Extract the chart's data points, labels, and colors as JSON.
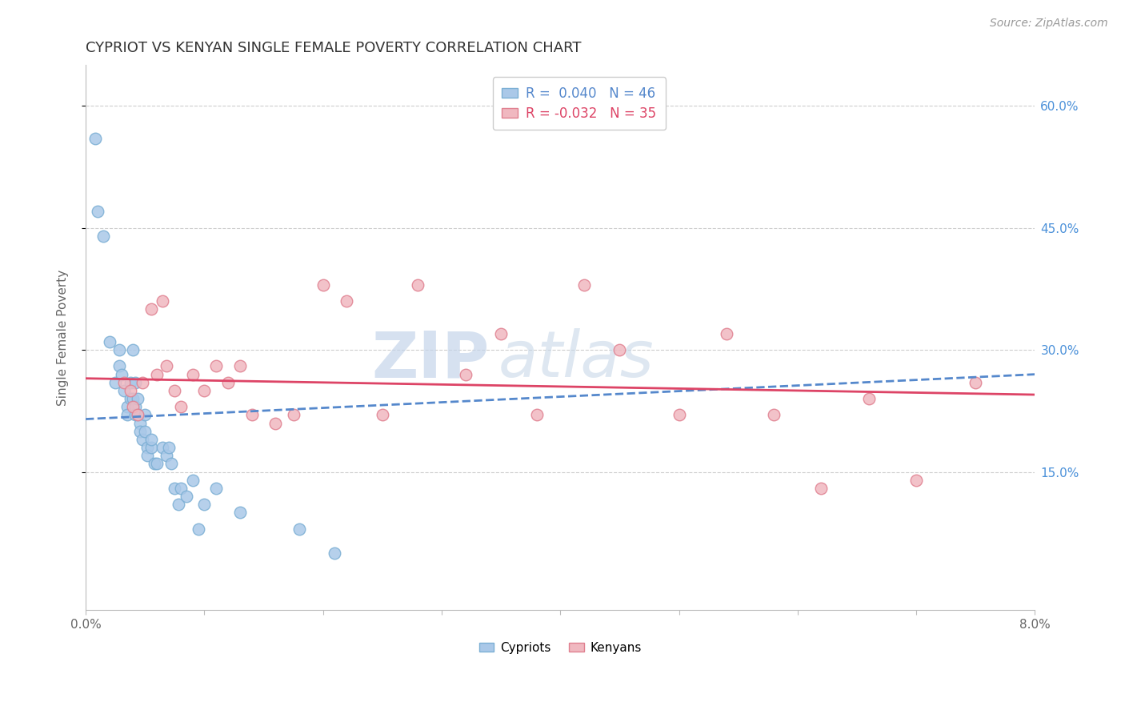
{
  "title": "CYPRIOT VS KENYAN SINGLE FEMALE POVERTY CORRELATION CHART",
  "source_text": "Source: ZipAtlas.com",
  "ylabel": "Single Female Poverty",
  "xlim": [
    0.0,
    0.08
  ],
  "ylim": [
    -0.02,
    0.65
  ],
  "y_tick_right": [
    0.15,
    0.3,
    0.45,
    0.6
  ],
  "y_tick_right_labels": [
    "15.0%",
    "30.0%",
    "45.0%",
    "60.0%"
  ],
  "cypriot_color_edge": "#7bafd4",
  "cypriot_color_fill": "#aac8e8",
  "kenyan_color_edge": "#e08090",
  "kenyan_color_fill": "#f0b8c0",
  "trend_cypriot_color": "#5588cc",
  "trend_kenyan_color": "#dd4466",
  "R_cypriot": 0.04,
  "N_cypriot": 46,
  "R_kenyan": -0.032,
  "N_kenyan": 35,
  "background_color": "#ffffff",
  "grid_color": "#c8c8c8",
  "watermark_color": "#ccd8ee",
  "cypriot_x": [
    0.0008,
    0.001,
    0.0015,
    0.002,
    0.0025,
    0.0028,
    0.0028,
    0.003,
    0.0032,
    0.0035,
    0.0035,
    0.0038,
    0.0038,
    0.004,
    0.004,
    0.0042,
    0.0042,
    0.0042,
    0.0044,
    0.0044,
    0.0046,
    0.0046,
    0.0048,
    0.005,
    0.005,
    0.0052,
    0.0052,
    0.0055,
    0.0055,
    0.0058,
    0.006,
    0.0065,
    0.0068,
    0.007,
    0.0072,
    0.0075,
    0.0078,
    0.008,
    0.0085,
    0.009,
    0.0095,
    0.01,
    0.011,
    0.013,
    0.018,
    0.021
  ],
  "cypriot_y": [
    0.56,
    0.47,
    0.44,
    0.31,
    0.26,
    0.28,
    0.3,
    0.27,
    0.25,
    0.23,
    0.22,
    0.26,
    0.24,
    0.3,
    0.24,
    0.26,
    0.23,
    0.22,
    0.24,
    0.22,
    0.21,
    0.2,
    0.19,
    0.2,
    0.22,
    0.18,
    0.17,
    0.18,
    0.19,
    0.16,
    0.16,
    0.18,
    0.17,
    0.18,
    0.16,
    0.13,
    0.11,
    0.13,
    0.12,
    0.14,
    0.08,
    0.11,
    0.13,
    0.1,
    0.08,
    0.05
  ],
  "kenyan_x": [
    0.0032,
    0.0038,
    0.004,
    0.0044,
    0.0048,
    0.0055,
    0.006,
    0.0065,
    0.0068,
    0.0075,
    0.008,
    0.009,
    0.01,
    0.011,
    0.012,
    0.013,
    0.014,
    0.016,
    0.0175,
    0.02,
    0.022,
    0.025,
    0.028,
    0.032,
    0.035,
    0.038,
    0.042,
    0.045,
    0.05,
    0.054,
    0.058,
    0.062,
    0.066,
    0.07,
    0.075
  ],
  "kenyan_y": [
    0.26,
    0.25,
    0.23,
    0.22,
    0.26,
    0.35,
    0.27,
    0.36,
    0.28,
    0.25,
    0.23,
    0.27,
    0.25,
    0.28,
    0.26,
    0.28,
    0.22,
    0.21,
    0.22,
    0.38,
    0.36,
    0.22,
    0.38,
    0.27,
    0.32,
    0.22,
    0.38,
    0.3,
    0.22,
    0.32,
    0.22,
    0.13,
    0.24,
    0.14,
    0.26
  ]
}
